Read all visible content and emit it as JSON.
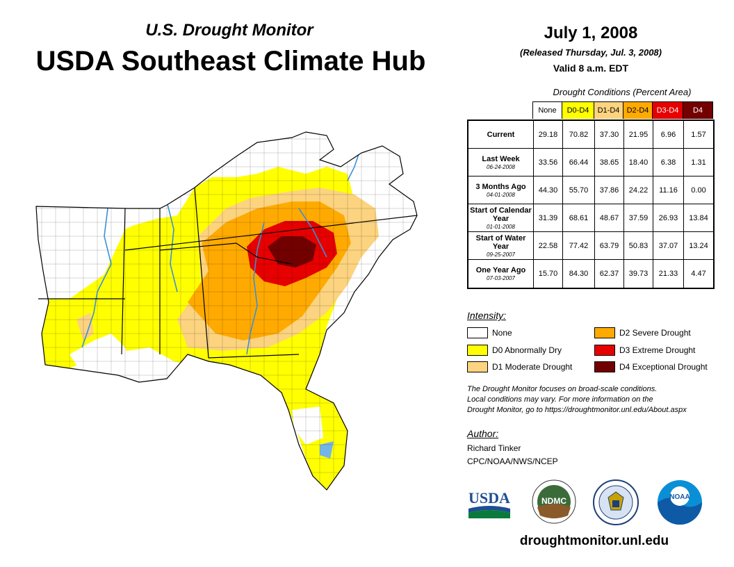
{
  "header": {
    "subtitle": "U.S. Drought Monitor",
    "title": "USDA Southeast Climate Hub",
    "date": "July 1, 2008",
    "released": "(Released Thursday, Jul. 3, 2008)",
    "valid": "Valid 8 a.m. EDT"
  },
  "table": {
    "caption": "Drought Conditions (Percent Area)",
    "columns": [
      "None",
      "D0-D4",
      "D1-D4",
      "D2-D4",
      "D3-D4",
      "D4"
    ],
    "column_colors": [
      "#ffffff",
      "#ffff00",
      "#fcd37f",
      "#ffaa00",
      "#e60000",
      "#730000"
    ],
    "rows": [
      {
        "label": "Current",
        "date": "",
        "values": [
          "29.18",
          "70.82",
          "37.30",
          "21.95",
          "6.96",
          "1.57"
        ]
      },
      {
        "label": "Last Week",
        "date": "06-24-2008",
        "values": [
          "33.56",
          "66.44",
          "38.65",
          "18.40",
          "6.38",
          "1.31"
        ]
      },
      {
        "label": "3 Months Ago",
        "date": "04-01-2008",
        "values": [
          "44.30",
          "55.70",
          "37.86",
          "24.22",
          "11.16",
          "0.00"
        ]
      },
      {
        "label": "Start of Calendar Year",
        "date": "01-01-2008",
        "values": [
          "31.39",
          "68.61",
          "48.67",
          "37.59",
          "26.93",
          "13.84"
        ]
      },
      {
        "label": "Start of Water Year",
        "date": "09-25-2007",
        "values": [
          "22.58",
          "77.42",
          "63.79",
          "50.83",
          "37.07",
          "13.24"
        ]
      },
      {
        "label": "One Year Ago",
        "date": "07-03-2007",
        "values": [
          "15.70",
          "84.30",
          "62.37",
          "39.73",
          "21.33",
          "4.47"
        ]
      }
    ]
  },
  "legend": {
    "title": "Intensity:",
    "items": [
      {
        "label": "None",
        "color": "#ffffff"
      },
      {
        "label": "D0 Abnormally Dry",
        "color": "#ffff00"
      },
      {
        "label": "D1 Moderate Drought",
        "color": "#fcd37f"
      },
      {
        "label": "D2 Severe Drought",
        "color": "#ffaa00"
      },
      {
        "label": "D3 Extreme Drought",
        "color": "#e60000"
      },
      {
        "label": "D4 Exceptional Drought",
        "color": "#730000"
      }
    ]
  },
  "note": {
    "line1": "The Drought Monitor focuses on broad-scale conditions.",
    "line2": "Local conditions may vary. For more information on the",
    "line3": "Drought Monitor, go to https://droughtmonitor.unl.edu/About.aspx"
  },
  "author": {
    "title": "Author:",
    "name": "Richard Tinker",
    "org": "CPC/NOAA/NWS/NCEP"
  },
  "logos": {
    "usda": "USDA",
    "ndmc": "NDMC",
    "noaa": "NOAA"
  },
  "footer_url": "droughtmonitor.unl.edu"
}
